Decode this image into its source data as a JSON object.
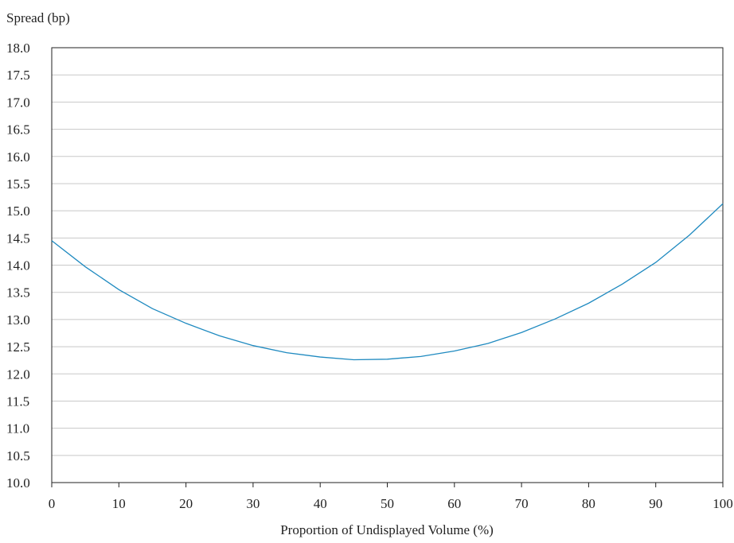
{
  "chart_data": {
    "type": "line",
    "y_label": "Spread (bp)",
    "x_label": "Proportion of Undisplayed Volume (%)",
    "x": [
      0,
      5,
      10,
      15,
      20,
      25,
      30,
      35,
      40,
      45,
      50,
      55,
      60,
      65,
      70,
      75,
      80,
      85,
      90,
      95,
      100
    ],
    "series": [
      {
        "color": "#1f8ac0",
        "values": [
          14.45,
          13.97,
          13.55,
          13.2,
          12.93,
          12.7,
          12.52,
          12.39,
          12.31,
          12.26,
          12.27,
          12.32,
          12.42,
          12.56,
          12.76,
          13.01,
          13.3,
          13.65,
          14.05,
          14.55,
          15.13
        ]
      }
    ],
    "xlim": [
      0,
      100
    ],
    "xticks": [
      0,
      10,
      20,
      30,
      40,
      50,
      60,
      70,
      80,
      90,
      100
    ],
    "ylim": [
      10,
      18
    ],
    "yticks": [
      {
        "value": 10,
        "label": "10.0"
      },
      {
        "value": 10.5,
        "label": "10.5"
      },
      {
        "value": 11,
        "label": "11.0"
      },
      {
        "value": 11.5,
        "label": "11.5"
      },
      {
        "value": 12,
        "label": "12.0"
      },
      {
        "value": 12.5,
        "label": "12.5"
      },
      {
        "value": 13,
        "label": "13.0"
      },
      {
        "value": 13.5,
        "label": "13.5"
      },
      {
        "value": 14,
        "label": "14.0"
      },
      {
        "value": 14.5,
        "label": "14.5"
      },
      {
        "value": 15,
        "label": "15.0"
      },
      {
        "value": 15.5,
        "label": "15.5"
      },
      {
        "value": 16,
        "label": "16.0"
      },
      {
        "value": 16.5,
        "label": "16.5"
      },
      {
        "value": 17,
        "label": "17.0"
      },
      {
        "value": 17.5,
        "label": "17.5"
      },
      {
        "value": 18,
        "label": "18.0"
      }
    ],
    "grid": true
  }
}
